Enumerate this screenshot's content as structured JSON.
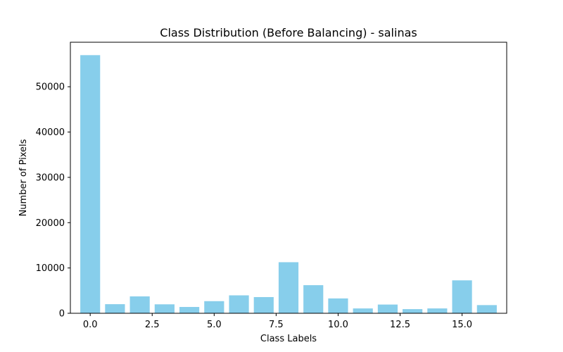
{
  "chart_data": {
    "type": "bar",
    "title": "Class Distribution (Before Balancing) - salinas",
    "xlabel": "Class Labels",
    "ylabel": "Number of Pixels",
    "x": [
      0,
      1,
      2,
      3,
      4,
      5,
      6,
      7,
      8,
      9,
      10,
      11,
      12,
      13,
      14,
      15,
      16
    ],
    "values": [
      56975,
      2009,
      3726,
      1976,
      1394,
      2678,
      3959,
      3579,
      11271,
      6203,
      3278,
      1068,
      1927,
      916,
      1070,
      7268,
      1807
    ],
    "xlim": [
      -0.8,
      16.8
    ],
    "ylim": [
      0,
      59823
    ],
    "xticks": [
      0.0,
      2.5,
      5.0,
      7.5,
      10.0,
      12.5,
      15.0
    ],
    "xtick_labels": [
      "0.0",
      "2.5",
      "5.0",
      "7.5",
      "10.0",
      "12.5",
      "15.0"
    ],
    "yticks": [
      0,
      10000,
      20000,
      30000,
      40000,
      50000
    ],
    "ytick_labels": [
      "0",
      "10000",
      "20000",
      "30000",
      "40000",
      "50000"
    ],
    "bar_color": "#87ceeb",
    "grid": false,
    "legend": "none"
  }
}
